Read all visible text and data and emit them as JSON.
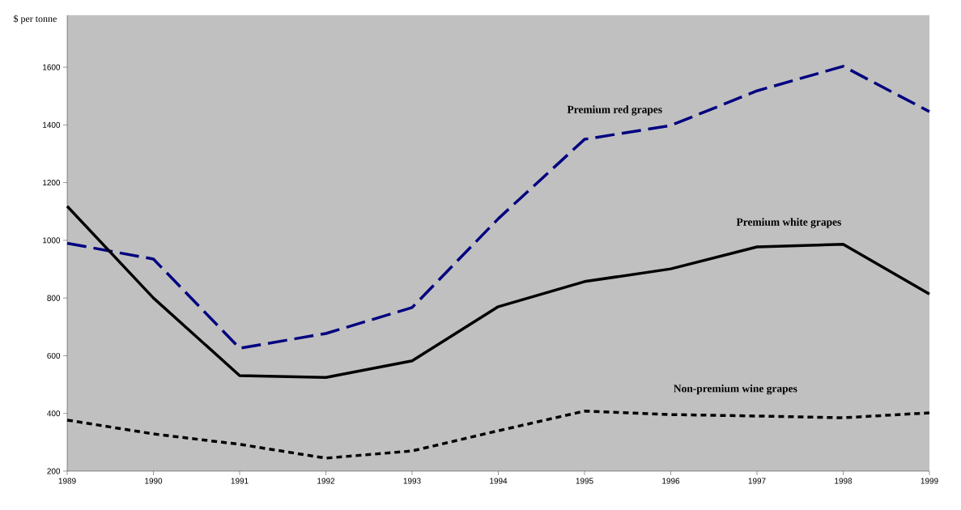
{
  "chart_data": {
    "type": "line",
    "ylabel": "$ per tonne",
    "x": [
      1989,
      1990,
      1991,
      1992,
      1993,
      1994,
      1995,
      1996,
      1997,
      1998,
      1999
    ],
    "xlim": [
      1989,
      1999
    ],
    "xticks": [
      1989,
      1990,
      1991,
      1992,
      1993,
      1994,
      1995,
      1996,
      1997,
      1998,
      1999
    ],
    "ylim": [
      200,
      1780
    ],
    "yticks": [
      200,
      400,
      600,
      800,
      1000,
      1200,
      1400,
      1600
    ],
    "grid": false,
    "legend": false,
    "marker": "none",
    "series": [
      {
        "name": "Premium red grapes",
        "color": "#000080",
        "line_style": "dashed",
        "values": [
          990,
          935,
          626,
          677,
          767,
          1075,
          1350,
          1398,
          1518,
          1603,
          1446
        ]
      },
      {
        "name": "Premium white grapes",
        "color": "#000000",
        "line_style": "solid",
        "values": [
          1118,
          800,
          531,
          525,
          582,
          770,
          857,
          901,
          977,
          986,
          814
        ]
      },
      {
        "name": "Non-premium wine grapes",
        "color": "#000000",
        "line_style": "dotted",
        "values": [
          377,
          329,
          293,
          245,
          270,
          340,
          408,
          396,
          391,
          385,
          402
        ]
      }
    ]
  }
}
